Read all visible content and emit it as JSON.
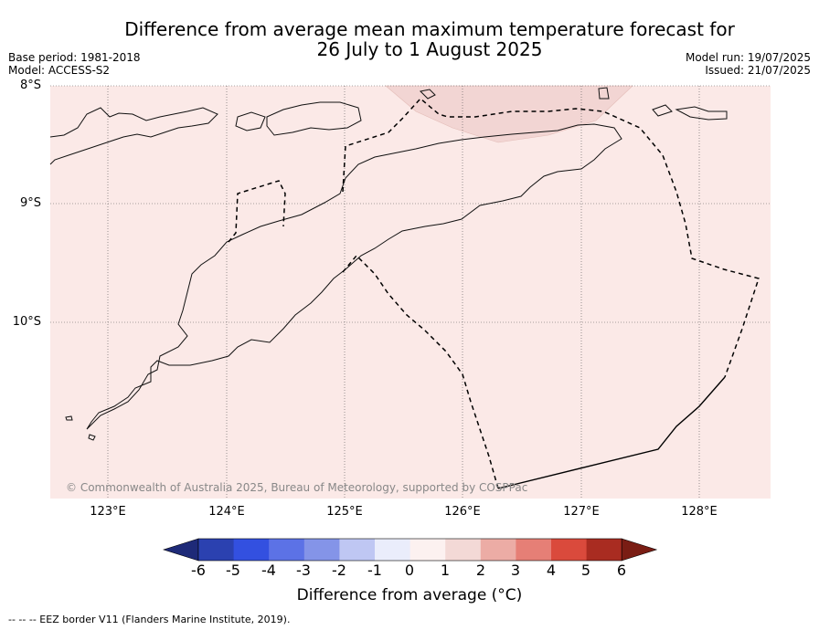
{
  "title": {
    "line1": "Difference from average mean maximum temperature forecast for",
    "line2": "26 July to 1 August 2025"
  },
  "meta_left": {
    "base_period": "Base period: 1981-2018",
    "model": "Model: ACCESS-S2"
  },
  "meta_right": {
    "model_run": "Model run: 19/07/2025",
    "issued": "Issued: 21/07/2025"
  },
  "map": {
    "lat_labels": [
      "8°S",
      "9°S",
      "10°S"
    ],
    "lon_labels": [
      "123°E",
      "124°E",
      "125°E",
      "126°E",
      "127°E",
      "128°E"
    ],
    "copyright": "© Commonwealth of Australia 2025, Bureau of Meteorology, supported by COSPPac",
    "fill_color": "#fbe9e7",
    "anomaly_color": "#f2d5d3",
    "grid": true,
    "gridline_style": "dotted"
  },
  "colorbar": {
    "ticks": [
      "-6",
      "-5",
      "-4",
      "-3",
      "-2",
      "-1",
      "0",
      "1",
      "2",
      "3",
      "4",
      "5",
      "6"
    ],
    "colors": [
      "#1e2a78",
      "#2b41b0",
      "#3350e0",
      "#5c72e6",
      "#8494e8",
      "#bfc7f3",
      "#eaedfb",
      "#fcf1f0",
      "#f3d9d6",
      "#ecaca5",
      "#e67f76",
      "#da4a3c",
      "#a92c21",
      "#7a1d14"
    ],
    "label": "Difference from average (°C)"
  },
  "footer": "--  --  -- EEZ border V11 (Flanders Marine Institute, 2019)."
}
